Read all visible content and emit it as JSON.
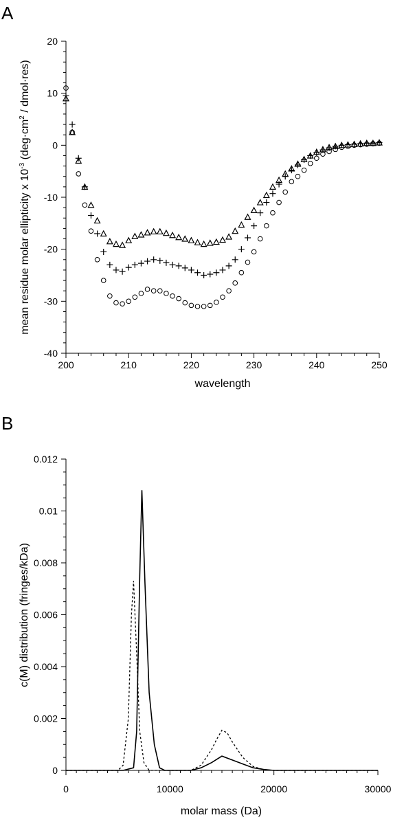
{
  "chart_data": [
    {
      "panel": "A",
      "type": "scatter",
      "xlabel": "wavelength",
      "ylabel_main": "mean residue molar ellipticity x 10",
      "ylabel_exp": "-3",
      "ylabel_units_a": " (deg·cm",
      "ylabel_units_exp": "2",
      "ylabel_units_b": " / dmol·res)",
      "xlim": [
        200,
        250
      ],
      "ylim": [
        -40,
        20
      ],
      "xticks": [
        200,
        210,
        220,
        230,
        240,
        250
      ],
      "yticks": [
        -40,
        -30,
        -20,
        -10,
        0,
        10,
        20
      ],
      "x": [
        200,
        201,
        202,
        203,
        204,
        205,
        206,
        207,
        208,
        209,
        210,
        211,
        212,
        213,
        214,
        215,
        216,
        217,
        218,
        219,
        220,
        221,
        222,
        223,
        224,
        225,
        226,
        227,
        228,
        229,
        230,
        231,
        232,
        233,
        234,
        235,
        236,
        237,
        238,
        239,
        240,
        241,
        242,
        243,
        244,
        245,
        246,
        247,
        248,
        249,
        250
      ],
      "series": [
        {
          "marker": "circle",
          "values": [
            11,
            2.5,
            -5.5,
            -11.5,
            -16.5,
            -22,
            -26,
            -29,
            -30.3,
            -30.5,
            -30,
            -29.2,
            -28.5,
            -27.7,
            -28,
            -28,
            -28.5,
            -29,
            -29.5,
            -30.3,
            -30.8,
            -31,
            -31,
            -30.8,
            -30.2,
            -29.2,
            -28,
            -26.5,
            -24.5,
            -22.5,
            -20.5,
            -18,
            -15.5,
            -13,
            -11,
            -9,
            -7,
            -6,
            -4.8,
            -3.5,
            -2.5,
            -1.7,
            -1.2,
            -0.8,
            -0.4,
            -0.2,
            0,
            0.1,
            0.2,
            0.3,
            0.4
          ]
        },
        {
          "marker": "plus",
          "values": [
            9.5,
            4,
            -2.5,
            -8,
            -13.5,
            -17,
            -20.5,
            -23,
            -24,
            -24.3,
            -23.5,
            -23,
            -22.7,
            -22.3,
            -22,
            -22.2,
            -22.6,
            -23,
            -23.2,
            -23.6,
            -24,
            -24.5,
            -25,
            -24.8,
            -24.5,
            -24,
            -23.2,
            -22,
            -20,
            -17.8,
            -15.5,
            -13,
            -11,
            -9.3,
            -7.5,
            -6,
            -4.8,
            -3.8,
            -2.8,
            -2,
            -1.4,
            -0.9,
            -0.5,
            -0.2,
            0,
            0.1,
            0.2,
            0.3,
            0.4,
            0.4,
            0.5
          ]
        },
        {
          "marker": "triangle",
          "values": [
            9,
            2.5,
            -3,
            -8,
            -11.5,
            -14.5,
            -17,
            -18.5,
            -19,
            -19.2,
            -18.3,
            -17.5,
            -17.2,
            -16.8,
            -16.6,
            -16.6,
            -16.9,
            -17.3,
            -17.7,
            -18,
            -18.3,
            -18.7,
            -19,
            -18.8,
            -18.6,
            -18.2,
            -17.6,
            -16.5,
            -15.3,
            -13.8,
            -12.5,
            -11,
            -9.6,
            -8,
            -6.7,
            -5.5,
            -4.5,
            -3.6,
            -2.7,
            -2,
            -1.3,
            -0.8,
            -0.4,
            -0.2,
            0,
            0.1,
            0.2,
            0.3,
            0.4,
            0.4,
            0.5
          ]
        }
      ]
    },
    {
      "panel": "B",
      "type": "line",
      "xlabel": "molar mass (Da)",
      "ylabel": "c(M) distribution (fringes/kDa)",
      "xlim": [
        0,
        30000
      ],
      "ylim": [
        0,
        0.012
      ],
      "xticks": [
        0,
        10000,
        20000,
        30000
      ],
      "yticks": [
        0,
        0.002,
        0.004,
        0.006,
        0.008,
        0.01,
        0.012
      ],
      "ytick_labels": [
        "0",
        "0.002",
        "0.004",
        "0.006",
        "0.008",
        "0.01",
        "0.012"
      ],
      "series": [
        {
          "style": "solid",
          "x": [
            0,
            5500,
            6500,
            6800,
            7100,
            7300,
            7600,
            8000,
            8500,
            9000,
            9500,
            12000,
            13000,
            14000,
            15000,
            16000,
            17000,
            18000,
            19000,
            20000,
            30000
          ],
          "y": [
            0,
            0,
            0.0001,
            0.0015,
            0.0075,
            0.0108,
            0.0072,
            0.003,
            0.001,
            0.0001,
            0,
            0,
            0.0001,
            0.0003,
            0.00055,
            0.0004,
            0.00025,
            0.0001,
            4e-05,
            0,
            0
          ]
        },
        {
          "style": "dashed",
          "x": [
            0,
            5000,
            5500,
            6000,
            6300,
            6500,
            6800,
            7100,
            7500,
            8000,
            9000,
            12000,
            13000,
            14000,
            14500,
            15000,
            15500,
            16000,
            17000,
            18000,
            19000,
            20000,
            30000
          ],
          "y": [
            0,
            0,
            0.0002,
            0.002,
            0.006,
            0.0073,
            0.0045,
            0.0015,
            0.0003,
            0,
            0,
            0,
            0.0002,
            0.0008,
            0.0012,
            0.00155,
            0.00145,
            0.0011,
            0.0005,
            0.00015,
            3e-05,
            0,
            0
          ]
        }
      ]
    }
  ]
}
